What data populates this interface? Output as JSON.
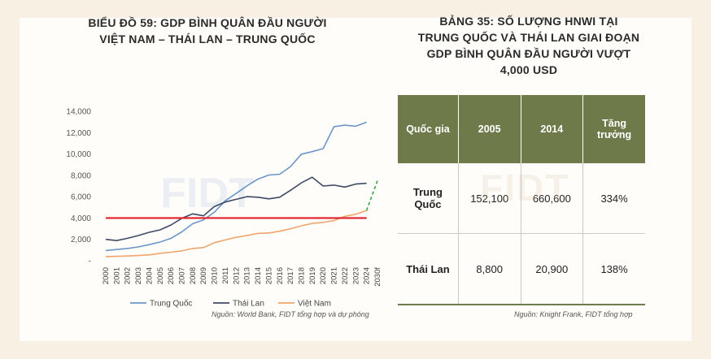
{
  "left_panel": {
    "title_line1": "BIỂU ĐỒ 59: GDP BÌNH QUÂN ĐẦU NGƯỜI",
    "title_line2": "VIỆT NAM – THÁI LAN – TRUNG QUỐC",
    "source": "Nguồn: World Bank, FIDT tổng hợp và dự phóng"
  },
  "right_panel": {
    "title_line1": "BẢNG 35: SỐ LƯỢNG HNWI TẠI",
    "title_line2": "TRUNG QUỐC VÀ THÁI LAN GIAI ĐOẠN",
    "title_line3": "GDP BÌNH QUÂN ĐẦU NGƯỜI VƯỢT",
    "title_line4": "4,000 USD",
    "source": "Nguồn: Knight Frank, FIDT tổng hợp",
    "headers": [
      "Quốc gia",
      "2005",
      "2014",
      "Tăng trưởng"
    ],
    "rows": [
      [
        "Trung Quốc",
        "152,100",
        "660,600",
        "334%"
      ],
      [
        "Thái Lan",
        "8,800",
        "20,900",
        "138%"
      ]
    ]
  },
  "chart_data": {
    "type": "line",
    "x": [
      "2000",
      "2001",
      "2002",
      "2003",
      "2004",
      "2005",
      "2006",
      "2007",
      "2008",
      "2009",
      "2010",
      "2011",
      "2012",
      "2013",
      "2014",
      "2015",
      "2016",
      "2017",
      "2018",
      "2019",
      "2020",
      "2021",
      "2022",
      "2023",
      "2024",
      "2030f"
    ],
    "y_ticks": [
      "-",
      "2,000",
      "4,000",
      "6,000",
      "8,000",
      "10,000",
      "12,000",
      "14,000"
    ],
    "ylim": [
      0,
      14000
    ],
    "series": [
      {
        "name": "Trung Quốc",
        "color": "#6c96c9",
        "values": [
          960,
          1050,
          1150,
          1290,
          1510,
          1750,
          2100,
          2700,
          3470,
          3830,
          4550,
          5620,
          6300,
          7020,
          7640,
          8030,
          8100,
          8820,
          9980,
          10220,
          10500,
          12560,
          12700,
          12600,
          12970,
          null
        ]
      },
      {
        "name": "Thái Lan",
        "color": "#3e4a64",
        "values": [
          2000,
          1890,
          2100,
          2360,
          2660,
          2890,
          3350,
          3970,
          4390,
          4210,
          5080,
          5500,
          5750,
          6000,
          5950,
          5800,
          5950,
          6600,
          7300,
          7820,
          7000,
          7080,
          6900,
          7180,
          7250,
          null
        ]
      },
      {
        "name": "Việt Nam",
        "color": "#f0a56c",
        "values": [
          390,
          410,
          440,
          490,
          550,
          690,
          800,
          920,
          1150,
          1230,
          1690,
          1950,
          2190,
          2370,
          2560,
          2600,
          2760,
          2990,
          3270,
          3490,
          3590,
          3760,
          4160,
          4350,
          4700,
          null
        ]
      },
      {
        "name": "",
        "color": "#3aa04a",
        "dashed": true,
        "values": [
          null,
          null,
          null,
          null,
          null,
          null,
          null,
          null,
          null,
          null,
          null,
          null,
          null,
          null,
          null,
          null,
          null,
          null,
          null,
          null,
          null,
          null,
          null,
          null,
          4700,
          7500
        ]
      }
    ],
    "threshold": {
      "value": 4000,
      "color": "#e1202a"
    },
    "legend": "bottom",
    "watermark": "FIDT"
  }
}
